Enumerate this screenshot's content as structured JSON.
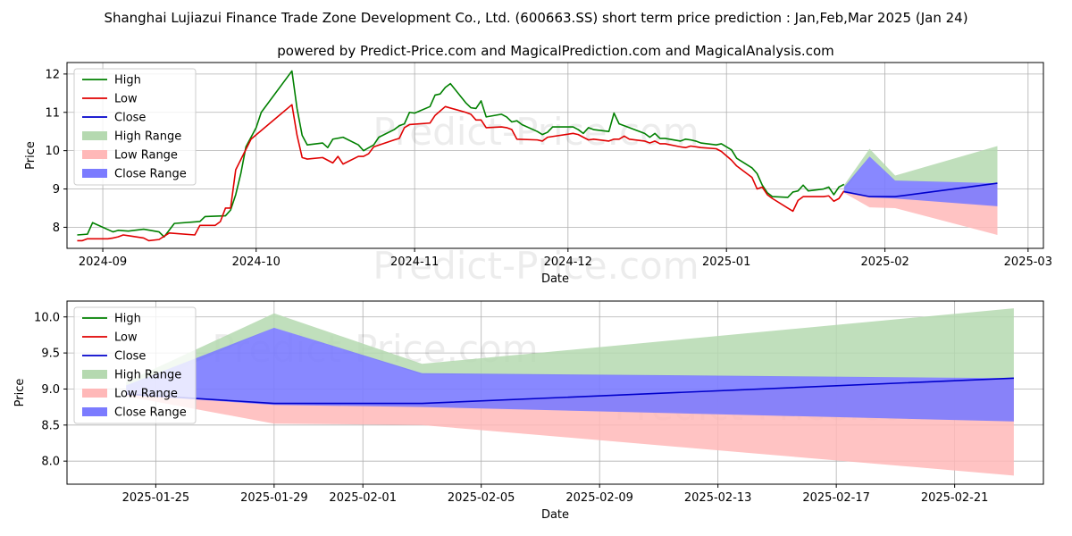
{
  "title": "Shanghai Lujiazui Finance Trade Zone Development Co., Ltd. (600663.SS) short term price prediction : Jan,Feb,Mar 2025 (Jan 24)",
  "subtitle": "powered by Predict-Price.com and MagicalPrediction.com and MagicalAnalysis.com",
  "watermark": "Predict-Price.com",
  "colors": {
    "high": "#008000",
    "low": "#e00000",
    "close": "#0000cc",
    "high_range": "#b5d9b0",
    "low_range": "#ffb8b8",
    "close_range": "#7b7bff"
  },
  "chart_data": [
    {
      "type": "line",
      "xlabel": "Date",
      "ylabel": "Price",
      "xlim": [
        "2024-08-25",
        "2025-03-04"
      ],
      "ylim": [
        7.45,
        12.3
      ],
      "x_ticks": [
        "2024-09",
        "2024-10",
        "2024-11",
        "2024-12",
        "2025-01",
        "2025-02",
        "2025-03"
      ],
      "y_ticks": [
        8,
        9,
        10,
        11,
        12
      ],
      "grid": true,
      "legend": "top-left",
      "legend_entries": [
        "High",
        "Low",
        "Close",
        "High Range",
        "Low Range",
        "Close Range"
      ],
      "series": [
        {
          "name": "High",
          "points": [
            [
              "2024-08-27",
              7.8
            ],
            [
              "2024-08-29",
              7.82
            ],
            [
              "2024-08-30",
              8.12
            ],
            [
              "2024-09-03",
              7.88
            ],
            [
              "2024-09-04",
              7.92
            ],
            [
              "2024-09-06",
              7.9
            ],
            [
              "2024-09-09",
              7.95
            ],
            [
              "2024-09-12",
              7.88
            ],
            [
              "2024-09-13",
              7.75
            ],
            [
              "2024-09-15",
              8.1
            ],
            [
              "2024-09-20",
              8.15
            ],
            [
              "2024-09-21",
              8.28
            ],
            [
              "2024-09-25",
              8.3
            ],
            [
              "2024-09-26",
              8.45
            ],
            [
              "2024-09-27",
              8.85
            ],
            [
              "2024-09-28",
              9.4
            ],
            [
              "2024-09-29",
              10.1
            ],
            [
              "2024-10-01",
              10.6
            ],
            [
              "2024-10-02",
              11.0
            ],
            [
              "2024-10-08",
              12.08
            ],
            [
              "2024-10-09",
              11.1
            ],
            [
              "2024-10-10",
              10.4
            ],
            [
              "2024-10-11",
              10.15
            ],
            [
              "2024-10-14",
              10.2
            ],
            [
              "2024-10-15",
              10.08
            ],
            [
              "2024-10-16",
              10.3
            ],
            [
              "2024-10-18",
              10.35
            ],
            [
              "2024-10-21",
              10.15
            ],
            [
              "2024-10-22",
              10.0
            ],
            [
              "2024-10-24",
              10.15
            ],
            [
              "2024-10-25",
              10.35
            ],
            [
              "2024-10-28",
              10.55
            ],
            [
              "2024-10-29",
              10.65
            ],
            [
              "2024-10-30",
              10.7
            ],
            [
              "2024-10-31",
              11.0
            ],
            [
              "2024-11-01",
              10.98
            ],
            [
              "2024-11-04",
              11.15
            ],
            [
              "2024-11-05",
              11.45
            ],
            [
              "2024-11-06",
              11.48
            ],
            [
              "2024-11-07",
              11.65
            ],
            [
              "2024-11-08",
              11.75
            ],
            [
              "2024-11-11",
              11.25
            ],
            [
              "2024-11-12",
              11.12
            ],
            [
              "2024-11-13",
              11.1
            ],
            [
              "2024-11-14",
              11.3
            ],
            [
              "2024-11-15",
              10.88
            ],
            [
              "2024-11-18",
              10.95
            ],
            [
              "2024-11-19",
              10.88
            ],
            [
              "2024-11-20",
              10.75
            ],
            [
              "2024-11-21",
              10.78
            ],
            [
              "2024-11-22",
              10.68
            ],
            [
              "2024-11-25",
              10.5
            ],
            [
              "2024-11-26",
              10.42
            ],
            [
              "2024-11-27",
              10.48
            ],
            [
              "2024-11-28",
              10.62
            ],
            [
              "2024-12-02",
              10.62
            ],
            [
              "2024-12-03",
              10.55
            ],
            [
              "2024-12-04",
              10.45
            ],
            [
              "2024-12-05",
              10.6
            ],
            [
              "2024-12-06",
              10.55
            ],
            [
              "2024-12-09",
              10.5
            ],
            [
              "2024-12-10",
              10.98
            ],
            [
              "2024-12-11",
              10.7
            ],
            [
              "2024-12-12",
              10.65
            ],
            [
              "2024-12-13",
              10.6
            ],
            [
              "2024-12-16",
              10.45
            ],
            [
              "2024-12-17",
              10.35
            ],
            [
              "2024-12-18",
              10.45
            ],
            [
              "2024-12-19",
              10.32
            ],
            [
              "2024-12-20",
              10.32
            ],
            [
              "2024-12-23",
              10.25
            ],
            [
              "2024-12-24",
              10.3
            ],
            [
              "2024-12-25",
              10.28
            ],
            [
              "2024-12-26",
              10.25
            ],
            [
              "2024-12-27",
              10.2
            ],
            [
              "2024-12-30",
              10.15
            ],
            [
              "2024-12-31",
              10.18
            ],
            [
              "2025-01-02",
              10.02
            ],
            [
              "2025-01-03",
              9.8
            ],
            [
              "2025-01-06",
              9.55
            ],
            [
              "2025-01-07",
              9.4
            ],
            [
              "2025-01-08",
              9.1
            ],
            [
              "2025-01-09",
              8.9
            ],
            [
              "2025-01-10",
              8.8
            ],
            [
              "2025-01-13",
              8.78
            ],
            [
              "2025-01-14",
              8.92
            ],
            [
              "2025-01-15",
              8.95
            ],
            [
              "2025-01-16",
              9.1
            ],
            [
              "2025-01-17",
              8.95
            ],
            [
              "2025-01-20",
              9.0
            ],
            [
              "2025-01-21",
              9.05
            ],
            [
              "2025-01-22",
              8.85
            ],
            [
              "2025-01-23",
              9.05
            ],
            [
              "2025-01-24",
              9.12
            ]
          ]
        },
        {
          "name": "Low",
          "points": [
            [
              "2024-08-27",
              7.65
            ],
            [
              "2024-08-28",
              7.65
            ],
            [
              "2024-08-29",
              7.7
            ],
            [
              "2024-09-02",
              7.7
            ],
            [
              "2024-09-03",
              7.72
            ],
            [
              "2024-09-04",
              7.75
            ],
            [
              "2024-09-05",
              7.8
            ],
            [
              "2024-09-06",
              7.78
            ],
            [
              "2024-09-09",
              7.72
            ],
            [
              "2024-09-10",
              7.65
            ],
            [
              "2024-09-12",
              7.68
            ],
            [
              "2024-09-14",
              7.85
            ],
            [
              "2024-09-19",
              7.8
            ],
            [
              "2024-09-20",
              8.05
            ],
            [
              "2024-09-23",
              8.05
            ],
            [
              "2024-09-24",
              8.15
            ],
            [
              "2024-09-25",
              8.5
            ],
            [
              "2024-09-26",
              8.5
            ],
            [
              "2024-09-27",
              9.5
            ],
            [
              "2024-09-30",
              10.3
            ],
            [
              "2024-10-08",
              11.2
            ],
            [
              "2024-10-09",
              10.4
            ],
            [
              "2024-10-10",
              9.82
            ],
            [
              "2024-10-11",
              9.78
            ],
            [
              "2024-10-14",
              9.82
            ],
            [
              "2024-10-15",
              9.75
            ],
            [
              "2024-10-16",
              9.68
            ],
            [
              "2024-10-17",
              9.85
            ],
            [
              "2024-10-18",
              9.65
            ],
            [
              "2024-10-21",
              9.85
            ],
            [
              "2024-10-22",
              9.85
            ],
            [
              "2024-10-23",
              9.92
            ],
            [
              "2024-10-24",
              10.1
            ],
            [
              "2024-10-28",
              10.28
            ],
            [
              "2024-10-29",
              10.32
            ],
            [
              "2024-10-30",
              10.6
            ],
            [
              "2024-10-31",
              10.68
            ],
            [
              "2024-11-04",
              10.72
            ],
            [
              "2024-11-05",
              10.92
            ],
            [
              "2024-11-07",
              11.15
            ],
            [
              "2024-11-11",
              11.0
            ],
            [
              "2024-11-12",
              10.95
            ],
            [
              "2024-11-13",
              10.8
            ],
            [
              "2024-11-14",
              10.8
            ],
            [
              "2024-11-15",
              10.6
            ],
            [
              "2024-11-18",
              10.62
            ],
            [
              "2024-11-19",
              10.6
            ],
            [
              "2024-11-20",
              10.55
            ],
            [
              "2024-11-21",
              10.3
            ],
            [
              "2024-11-25",
              10.28
            ],
            [
              "2024-11-26",
              10.25
            ],
            [
              "2024-11-27",
              10.35
            ],
            [
              "2024-12-02",
              10.45
            ],
            [
              "2024-12-03",
              10.42
            ],
            [
              "2024-12-04",
              10.35
            ],
            [
              "2024-12-05",
              10.28
            ],
            [
              "2024-12-06",
              10.3
            ],
            [
              "2024-12-09",
              10.25
            ],
            [
              "2024-12-10",
              10.3
            ],
            [
              "2024-12-11",
              10.3
            ],
            [
              "2024-12-12",
              10.38
            ],
            [
              "2024-12-13",
              10.3
            ],
            [
              "2024-12-16",
              10.25
            ],
            [
              "2024-12-17",
              10.2
            ],
            [
              "2024-12-18",
              10.25
            ],
            [
              "2024-12-19",
              10.18
            ],
            [
              "2024-12-20",
              10.18
            ],
            [
              "2024-12-23",
              10.1
            ],
            [
              "2024-12-24",
              10.08
            ],
            [
              "2024-12-25",
              10.12
            ],
            [
              "2024-12-26",
              10.1
            ],
            [
              "2024-12-27",
              10.08
            ],
            [
              "2024-12-30",
              10.05
            ],
            [
              "2024-12-31",
              9.98
            ],
            [
              "2025-01-02",
              9.75
            ],
            [
              "2025-01-03",
              9.6
            ],
            [
              "2025-01-06",
              9.3
            ],
            [
              "2025-01-07",
              9.0
            ],
            [
              "2025-01-08",
              9.05
            ],
            [
              "2025-01-09",
              8.85
            ],
            [
              "2025-01-10",
              8.75
            ],
            [
              "2025-01-13",
              8.5
            ],
            [
              "2025-01-14",
              8.42
            ],
            [
              "2025-01-15",
              8.7
            ],
            [
              "2025-01-16",
              8.8
            ],
            [
              "2025-01-17",
              8.8
            ],
            [
              "2025-01-20",
              8.8
            ],
            [
              "2025-01-21",
              8.82
            ],
            [
              "2025-01-22",
              8.68
            ],
            [
              "2025-01-23",
              8.75
            ],
            [
              "2025-01-24",
              8.95
            ]
          ]
        },
        {
          "name": "Close",
          "points": [
            [
              "2025-01-24",
              8.93
            ],
            [
              "2025-01-29",
              8.8
            ],
            [
              "2025-02-03",
              8.8
            ],
            [
              "2025-02-23",
              9.15
            ]
          ]
        }
      ],
      "ranges": [
        {
          "name": "High Range",
          "points": [
            [
              "2025-01-24",
              9.1,
              8.95
            ],
            [
              "2025-01-29",
              10.05,
              9.85
            ],
            [
              "2025-02-03",
              9.35,
              9.2
            ],
            [
              "2025-02-23",
              10.12,
              9.15
            ]
          ]
        },
        {
          "name": "Low Range",
          "points": [
            [
              "2025-01-24",
              8.95,
              8.9
            ],
            [
              "2025-01-29",
              8.8,
              8.52
            ],
            [
              "2025-02-03",
              8.8,
              8.5
            ],
            [
              "2025-02-23",
              9.15,
              7.8
            ]
          ]
        },
        {
          "name": "Close Range",
          "points": [
            [
              "2025-01-24",
              9.05,
              8.92
            ],
            [
              "2025-01-29",
              9.85,
              8.78
            ],
            [
              "2025-02-03",
              9.22,
              8.75
            ],
            [
              "2025-02-23",
              9.15,
              8.55
            ]
          ]
        }
      ]
    },
    {
      "type": "line",
      "xlabel": "Date",
      "ylabel": "Price",
      "xlim": [
        "2025-01-22",
        "2025-02-24"
      ],
      "ylim": [
        7.68,
        10.22
      ],
      "x_ticks": [
        "2025-01-25",
        "2025-01-29",
        "2025-02-01",
        "2025-02-05",
        "2025-02-09",
        "2025-02-13",
        "2025-02-17",
        "2025-02-21"
      ],
      "y_ticks": [
        8.0,
        8.5,
        9.0,
        9.5,
        10.0
      ],
      "grid": true,
      "legend": "top-left",
      "legend_entries": [
        "High",
        "Low",
        "Close",
        "High Range",
        "Low Range",
        "Close Range"
      ],
      "series": [
        {
          "name": "Close",
          "points": [
            [
              "2025-01-24",
              8.93
            ],
            [
              "2025-01-29",
              8.8
            ],
            [
              "2025-02-03",
              8.8
            ],
            [
              "2025-02-23",
              9.15
            ]
          ]
        }
      ],
      "ranges": [
        {
          "name": "High Range",
          "points": [
            [
              "2025-01-24",
              9.1,
              8.95
            ],
            [
              "2025-01-29",
              10.05,
              9.85
            ],
            [
              "2025-02-03",
              9.35,
              9.2
            ],
            [
              "2025-02-23",
              10.12,
              9.15
            ]
          ]
        },
        {
          "name": "Low Range",
          "points": [
            [
              "2025-01-24",
              8.95,
              8.9
            ],
            [
              "2025-01-29",
              8.8,
              8.52
            ],
            [
              "2025-02-03",
              8.8,
              8.5
            ],
            [
              "2025-02-23",
              9.15,
              7.8
            ]
          ]
        },
        {
          "name": "Close Range",
          "points": [
            [
              "2025-01-24",
              9.05,
              8.92
            ],
            [
              "2025-01-29",
              9.85,
              8.78
            ],
            [
              "2025-02-03",
              9.22,
              8.75
            ],
            [
              "2025-02-23",
              9.15,
              8.55
            ]
          ]
        }
      ]
    }
  ]
}
